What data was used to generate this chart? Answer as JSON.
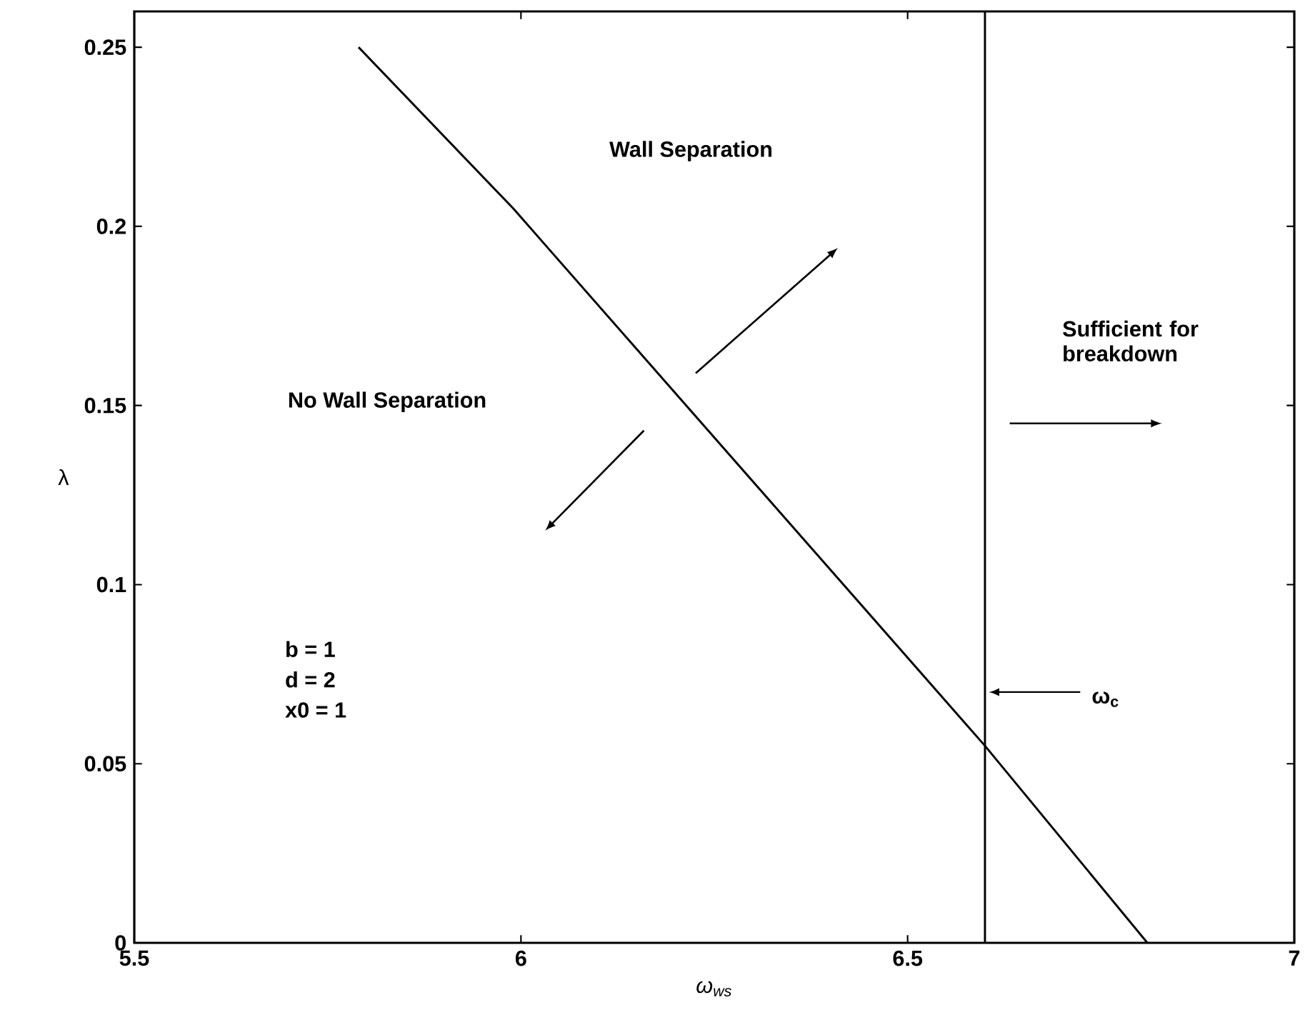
{
  "chart_data": {
    "type": "line",
    "xlabel": "ω$_{ws}$",
    "ylabel": "λ",
    "x": [
      5.79,
      5.99,
      6.6,
      6.81
    ],
    "series": [
      {
        "color": "#000000",
        "values": [
          0.25,
          0.205,
          0.055,
          0
        ]
      }
    ],
    "xlim": [
      5.5,
      7
    ],
    "ylim": [
      0,
      0.26
    ],
    "xticks": [
      5.5,
      6,
      6.5,
      7
    ],
    "yticks": [
      0,
      0.05,
      0.1,
      0.15,
      0.2,
      0.25
    ],
    "grid": false,
    "marker": "none",
    "line_style": "solid",
    "ref_lines": [
      {
        "axis": "x",
        "value": 6.6,
        "label": "ω$_{c}$",
        "color": "#000000",
        "line_style": "solid"
      }
    ],
    "annotations": [
      "Wall Separation",
      "No Wall Separation",
      "Sufficient for breakdown",
      "b = 1",
      "d = 2",
      "x0 = 1"
    ]
  }
}
